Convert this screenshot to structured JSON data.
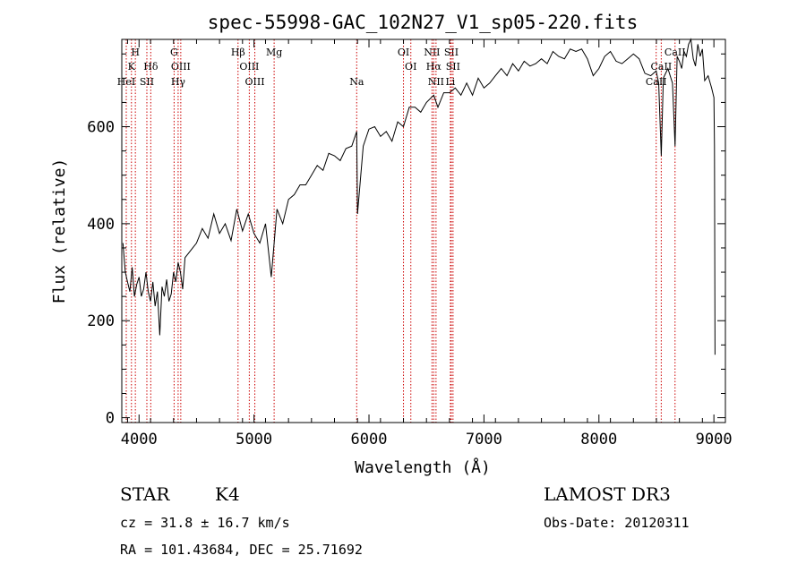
{
  "chart_data": {
    "type": "line",
    "title": "spec-55998-GAC_102N27_V1_sp05-220.fits",
    "xlabel": "Wavelength (Å)",
    "ylabel": "Flux (relative)",
    "xlim": [
      3850,
      9100
    ],
    "ylim": [
      -10,
      780
    ],
    "xticks": [
      4000,
      5000,
      6000,
      7000,
      8000,
      9000
    ],
    "yticks": [
      0,
      200,
      400,
      600
    ],
    "grid": false,
    "line_color": "#000000",
    "marker_color": "#cc0000",
    "series": [
      {
        "x": [
          3860,
          3880,
          3900,
          3920,
          3940,
          3960,
          3980,
          4000,
          4020,
          4040,
          4060,
          4080,
          4100,
          4120,
          4140,
          4160,
          4180,
          4200,
          4220,
          4240,
          4260,
          4280,
          4300,
          4320,
          4340,
          4360,
          4380,
          4400,
          4450,
          4500,
          4550,
          4600,
          4650,
          4700,
          4750,
          4800,
          4850,
          4900,
          4950,
          5000,
          5050,
          5100,
          5150,
          5200,
          5250,
          5300,
          5350,
          5400,
          5450,
          5500,
          5550,
          5600,
          5650,
          5700,
          5750,
          5800,
          5850,
          5893,
          5900,
          5950,
          6000,
          6050,
          6100,
          6150,
          6200,
          6250,
          6300,
          6350,
          6400,
          6450,
          6500,
          6563,
          6600,
          6650,
          6700,
          6750,
          6800,
          6850,
          6900,
          6950,
          7000,
          7050,
          7100,
          7150,
          7200,
          7250,
          7300,
          7350,
          7400,
          7450,
          7500,
          7550,
          7600,
          7650,
          7700,
          7750,
          7800,
          7850,
          7900,
          7950,
          8000,
          8050,
          8100,
          8150,
          8200,
          8250,
          8300,
          8350,
          8400,
          8450,
          8498,
          8520,
          8542,
          8560,
          8600,
          8640,
          8662,
          8680,
          8700,
          8720,
          8740,
          8760,
          8780,
          8800,
          8820,
          8840,
          8860,
          8880,
          8900,
          8920,
          8950,
          8980,
          9000,
          9005,
          9010
        ],
        "y": [
          360,
          300,
          280,
          260,
          310,
          250,
          275,
          290,
          250,
          265,
          300,
          260,
          240,
          280,
          230,
          260,
          170,
          270,
          250,
          285,
          240,
          255,
          300,
          280,
          320,
          300,
          265,
          330,
          345,
          360,
          390,
          370,
          420,
          380,
          400,
          365,
          430,
          385,
          420,
          380,
          360,
          400,
          290,
          430,
          400,
          450,
          460,
          480,
          480,
          500,
          520,
          510,
          545,
          540,
          530,
          555,
          560,
          590,
          420,
          560,
          595,
          600,
          580,
          590,
          570,
          610,
          600,
          640,
          640,
          630,
          650,
          665,
          640,
          670,
          670,
          680,
          665,
          690,
          665,
          700,
          680,
          690,
          705,
          720,
          705,
          730,
          715,
          735,
          725,
          730,
          740,
          730,
          755,
          745,
          740,
          760,
          755,
          760,
          740,
          705,
          720,
          745,
          755,
          735,
          730,
          740,
          750,
          740,
          710,
          705,
          715,
          690,
          540,
          700,
          720,
          690,
          560,
          745,
          735,
          720,
          755,
          745,
          770,
          780,
          740,
          725,
          770,
          745,
          760,
          695,
          705,
          680,
          660,
          560,
          130
        ]
      }
    ],
    "spectral_lines": [
      {
        "label": "H",
        "x": 3968,
        "tier": 1
      },
      {
        "label": "K",
        "x": 3934,
        "tier": 2
      },
      {
        "label": "HeI",
        "x": 3889,
        "tier": 3
      },
      {
        "label": "SII",
        "x": 4068,
        "tier": 3
      },
      {
        "label": "Hδ",
        "x": 4102,
        "tier": 2
      },
      {
        "label": "G",
        "x": 4305,
        "tier": 1
      },
      {
        "label": "OIII",
        "x": 4363,
        "tier": 2
      },
      {
        "label": "Hγ",
        "x": 4340,
        "tier": 3
      },
      {
        "label": "Hβ",
        "x": 4861,
        "tier": 1
      },
      {
        "label": "OIII",
        "x": 4959,
        "tier": 2
      },
      {
        "label": "OIII",
        "x": 5007,
        "tier": 3
      },
      {
        "label": "Mg",
        "x": 5175,
        "tier": 1
      },
      {
        "label": "Na",
        "x": 5893,
        "tier": 3
      },
      {
        "label": "OI",
        "x": 6300,
        "tier": 1
      },
      {
        "label": "OI",
        "x": 6364,
        "tier": 2
      },
      {
        "label": "NII",
        "x": 6548,
        "tier": 1
      },
      {
        "label": "Hα",
        "x": 6563,
        "tier": 2
      },
      {
        "label": "NII",
        "x": 6583,
        "tier": 3
      },
      {
        "label": "SII",
        "x": 6716,
        "tier": 1
      },
      {
        "label": "SII",
        "x": 6731,
        "tier": 2
      },
      {
        "label": "Li",
        "x": 6708,
        "tier": 3
      },
      {
        "label": "CaII",
        "x": 8662,
        "tier": 1
      },
      {
        "label": "CaII",
        "x": 8542,
        "tier": 2
      },
      {
        "label": "CaII",
        "x": 8498,
        "tier": 3
      }
    ]
  },
  "info": {
    "object_class": "STAR",
    "subclass": "K4",
    "survey": "LAMOST DR3",
    "redshift": "cz = 31.8 ± 16.7 km/s",
    "obs_date": "Obs-Date: 20120311",
    "coords": "RA = 101.43684, DEC =  25.71692"
  }
}
